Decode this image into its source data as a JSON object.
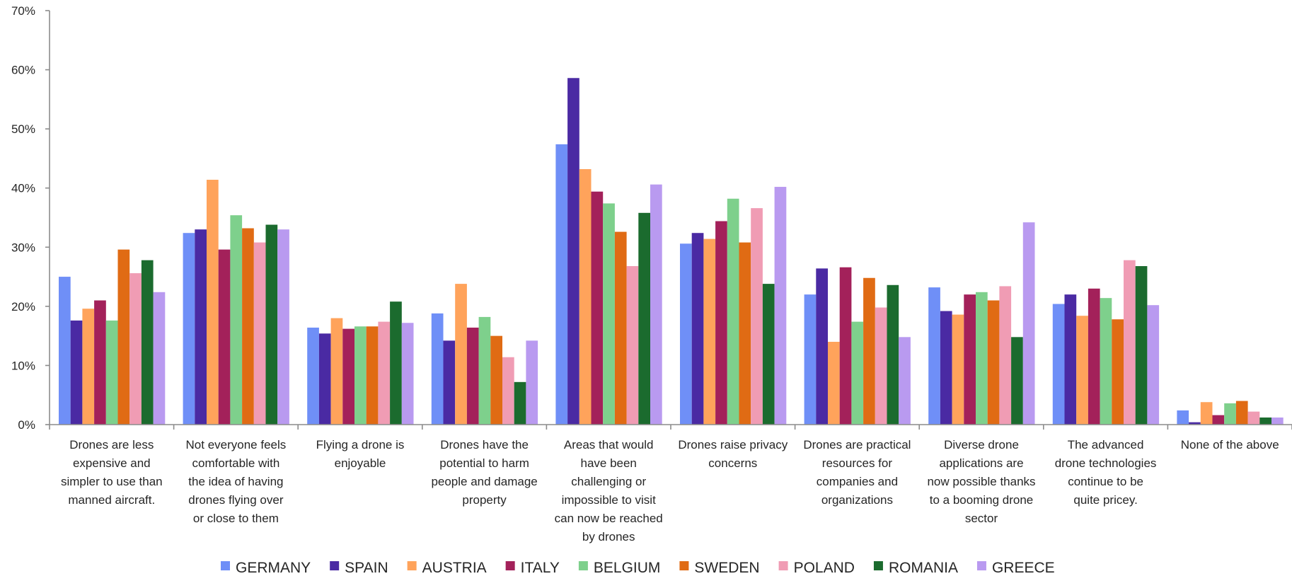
{
  "chart_data": {
    "type": "bar",
    "title": "",
    "xlabel": "",
    "ylabel": "",
    "ylim": [
      0,
      70
    ],
    "yticks": [
      "0%",
      "10%",
      "20%",
      "30%",
      "40%",
      "50%",
      "60%",
      "70%"
    ],
    "grid": false,
    "legend_position": "bottom",
    "categories": [
      "Drones are less expensive and simpler to use than manned aircraft.",
      "Not everyone feels comfortable with the idea of having drones flying over or close to them",
      "Flying a drone is enjoyable",
      "Drones have the potential to harm people and damage property",
      "Areas that would have been challenging or impossible to visit can now be reached by drones",
      "Drones raise privacy concerns",
      "Drones are practical resources for companies and organizations",
      "Diverse drone applications are now possible thanks to a booming drone sector",
      "The advanced drone technologies continue to be quite pricey.",
      "None of the above"
    ],
    "category_lines": [
      [
        "Drones are less",
        "expensive and",
        "simpler to use than",
        "manned aircraft."
      ],
      [
        "Not everyone feels",
        "comfortable with",
        "the idea of having",
        "drones flying over",
        "or close to them"
      ],
      [
        "Flying a drone is",
        "enjoyable"
      ],
      [
        "Drones have the",
        "potential to harm",
        "people and damage",
        "property"
      ],
      [
        "Areas that would",
        "have been",
        "challenging or",
        "impossible to visit",
        "can now be reached",
        "by drones"
      ],
      [
        "Drones raise privacy",
        "concerns"
      ],
      [
        "Drones are practical",
        "resources for",
        "companies and",
        "organizations"
      ],
      [
        "Diverse drone",
        "applications are",
        "now possible thanks",
        "to a booming drone",
        "sector"
      ],
      [
        "The advanced",
        "drone technologies",
        "continue to be",
        "quite pricey."
      ],
      [
        "None of the above"
      ]
    ],
    "series": [
      {
        "name": "GERMANY",
        "color": "#6f8ff7",
        "values": [
          25,
          32.4,
          16.4,
          18.8,
          47.4,
          30.6,
          22,
          23.2,
          20.4,
          2.4
        ]
      },
      {
        "name": "SPAIN",
        "color": "#4a2aa3",
        "values": [
          17.6,
          33,
          15.4,
          14.2,
          58.6,
          32.4,
          26.4,
          19.2,
          22,
          0.4
        ]
      },
      {
        "name": "AUSTRIA",
        "color": "#ffa35b",
        "values": [
          19.6,
          41.4,
          18,
          23.8,
          43.2,
          31.4,
          14,
          18.6,
          18.4,
          3.8
        ]
      },
      {
        "name": "ITALY",
        "color": "#a3215a",
        "values": [
          21,
          29.6,
          16.2,
          16.4,
          39.4,
          34.4,
          26.6,
          22,
          23,
          1.6
        ]
      },
      {
        "name": "BELGIUM",
        "color": "#7ed08c",
        "values": [
          17.6,
          35.4,
          16.6,
          18.2,
          37.4,
          38.2,
          17.4,
          22.4,
          21.4,
          3.6
        ]
      },
      {
        "name": "SWEDEN",
        "color": "#e06b14",
        "values": [
          29.6,
          33.2,
          16.6,
          15,
          32.6,
          30.8,
          24.8,
          21,
          17.8,
          4
        ]
      },
      {
        "name": "POLAND",
        "color": "#f09cb4",
        "values": [
          25.6,
          30.8,
          17.4,
          11.4,
          26.8,
          36.6,
          19.8,
          23.4,
          27.8,
          2.2
        ]
      },
      {
        "name": "ROMANIA",
        "color": "#1b6b2e",
        "values": [
          27.8,
          33.8,
          20.8,
          7.2,
          35.8,
          23.8,
          23.6,
          14.8,
          26.8,
          1.2
        ]
      },
      {
        "name": "GREECE",
        "color": "#b99af0",
        "values": [
          22.4,
          33,
          17.2,
          14.2,
          40.6,
          40.2,
          14.8,
          34.2,
          20.2,
          1.2
        ]
      }
    ]
  }
}
